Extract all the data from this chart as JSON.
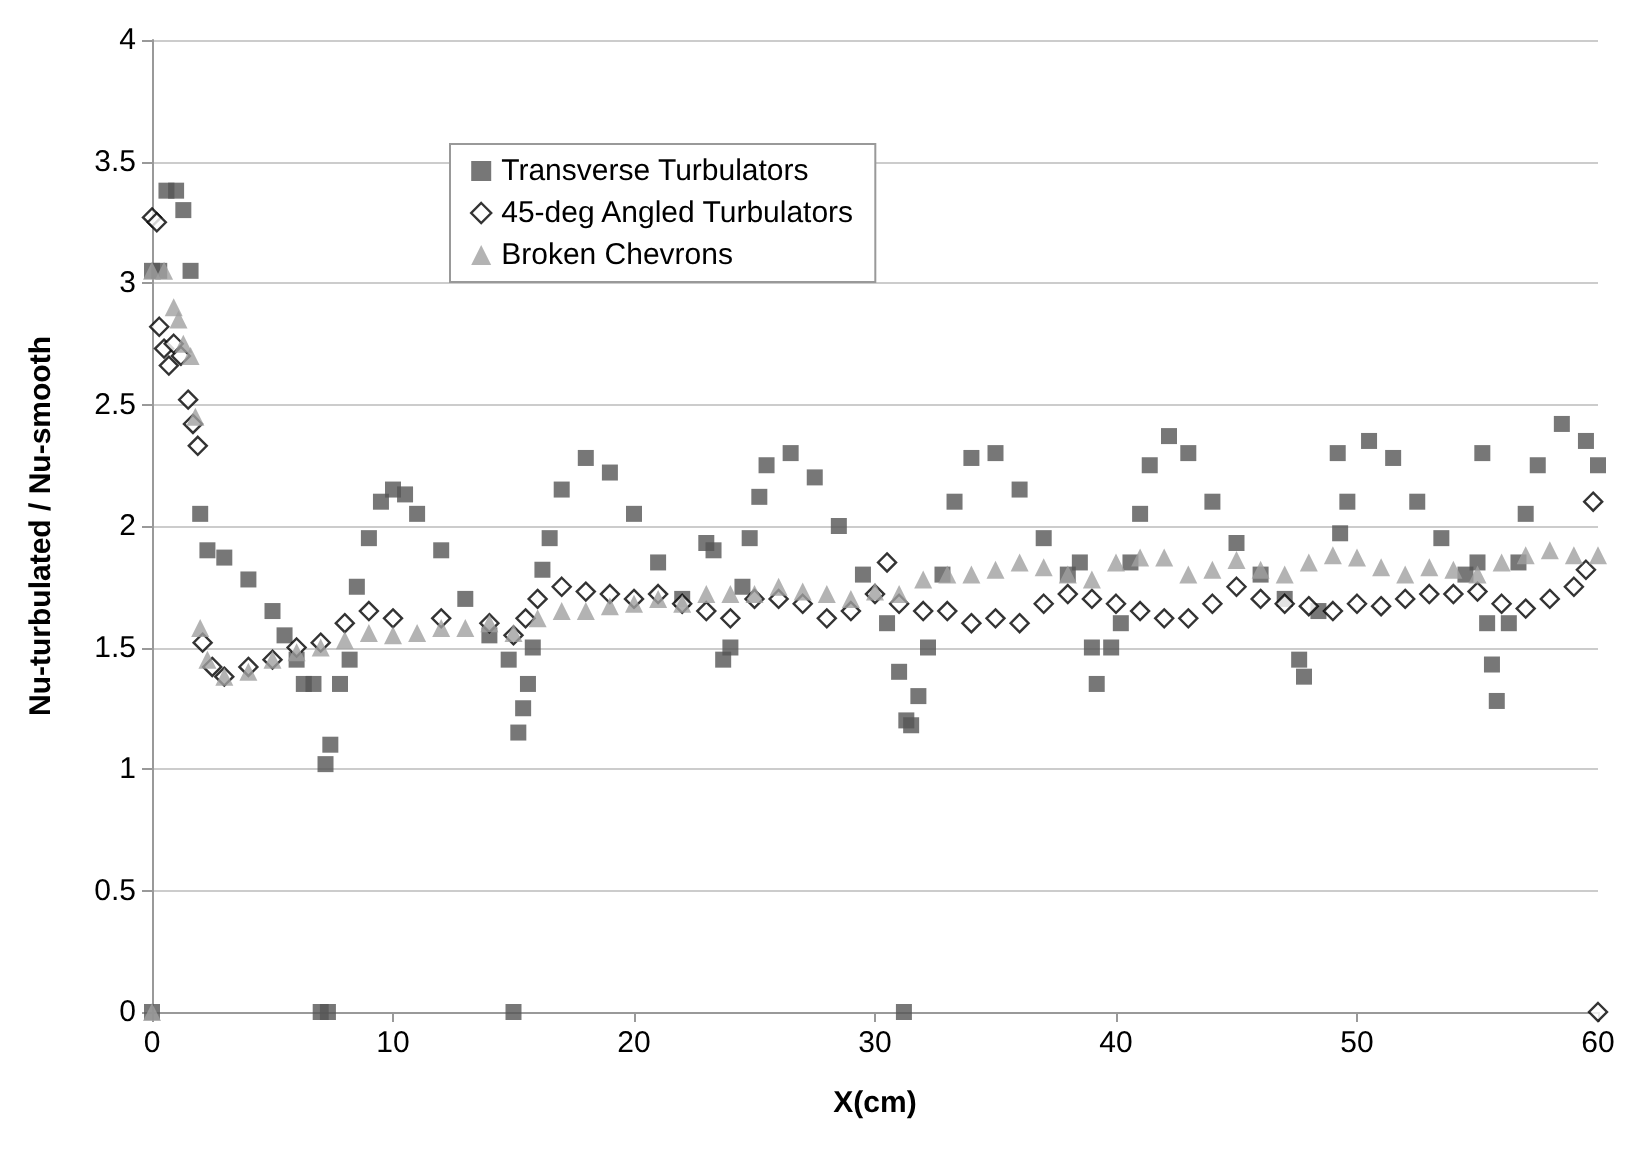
{
  "chart_data": {
    "type": "scatter",
    "xlabel": "X(cm)",
    "ylabel": "Nu-turbulated / Nu-smooth",
    "xlim": [
      0,
      60
    ],
    "xticks": [
      0,
      10,
      20,
      30,
      40,
      50,
      60
    ],
    "ylim": [
      0,
      4
    ],
    "yticks": [
      0,
      0.5,
      1,
      1.5,
      2,
      2.5,
      3,
      3.5,
      4
    ],
    "grid": "y",
    "legend": "top left",
    "series": [
      {
        "name": "Transverse Turbulators",
        "color": "#555555",
        "marker": "square",
        "x": [
          0,
          0.3,
          0.6,
          1,
          1.3,
          1.6,
          2,
          2.3,
          3,
          4,
          5,
          5.5,
          6,
          6.3,
          6.7,
          7.2,
          7.4,
          7.8,
          8.2,
          8.5,
          9,
          9.5,
          10,
          10.5,
          11,
          12,
          13,
          14,
          14.8,
          15.2,
          15.4,
          15.6,
          15.8,
          16.2,
          16.5,
          17,
          18,
          19,
          20,
          21,
          22,
          23,
          23.3,
          23.7,
          24,
          24.5,
          24.8,
          25.2,
          25.5,
          26.5,
          27.5,
          28.5,
          29.5,
          30.5,
          31,
          31.3,
          31.5,
          31.8,
          32.2,
          32.8,
          33.3,
          34,
          35,
          36,
          37,
          38,
          38.5,
          39,
          39.2,
          39.8,
          40.2,
          40.6,
          41,
          41.4,
          42.2,
          43,
          44,
          45,
          46,
          47,
          47.6,
          47.8,
          48.4,
          49.2,
          49.3,
          49.6,
          50.5,
          51.5,
          52.5,
          53.5,
          54.5,
          55,
          55.2,
          55.4,
          55.6,
          55.8,
          56.3,
          56.7,
          57,
          57.5,
          58.5,
          59.5,
          60,
          0,
          7,
          7.3,
          15,
          31.2
        ],
        "values": [
          3.05,
          3.05,
          3.38,
          3.38,
          3.3,
          3.05,
          2.05,
          1.9,
          1.87,
          1.78,
          1.65,
          1.55,
          1.45,
          1.35,
          1.35,
          1.02,
          1.1,
          1.35,
          1.45,
          1.75,
          1.95,
          2.1,
          2.15,
          2.13,
          2.05,
          1.9,
          1.7,
          1.55,
          1.45,
          1.15,
          1.25,
          1.35,
          1.5,
          1.82,
          1.95,
          2.15,
          2.28,
          2.22,
          2.05,
          1.85,
          1.7,
          1.93,
          1.9,
          1.45,
          1.5,
          1.75,
          1.95,
          2.12,
          2.25,
          2.3,
          2.2,
          2.0,
          1.8,
          1.6,
          1.4,
          1.2,
          1.18,
          1.3,
          1.5,
          1.8,
          2.1,
          2.28,
          2.3,
          2.15,
          1.95,
          1.8,
          1.85,
          1.5,
          1.35,
          1.5,
          1.6,
          1.85,
          2.05,
          2.25,
          2.37,
          2.3,
          2.1,
          1.93,
          1.8,
          1.7,
          1.45,
          1.38,
          1.65,
          2.3,
          1.97,
          2.1,
          2.35,
          2.28,
          2.1,
          1.95,
          1.8,
          1.85,
          2.3,
          1.6,
          1.43,
          1.28,
          1.6,
          1.85,
          2.05,
          2.25,
          2.42,
          2.35,
          2.25,
          0,
          0,
          0,
          0,
          0
        ]
      },
      {
        "name": "45-deg Angled Turbulators",
        "color": "#000000",
        "marker": "diamond",
        "x": [
          0,
          0.2,
          0.3,
          0.5,
          0.7,
          0.9,
          1.2,
          1.5,
          1.7,
          1.9,
          2.1,
          2.5,
          3,
          4,
          5,
          6,
          7,
          8,
          9,
          10,
          12,
          14,
          15,
          15.5,
          16,
          17,
          18,
          19,
          20,
          21,
          22,
          23,
          24,
          25,
          26,
          27,
          28,
          29,
          30,
          30.5,
          31,
          32,
          33,
          34,
          35,
          36,
          37,
          38,
          39,
          40,
          41,
          42,
          43,
          44,
          45,
          46,
          47,
          48,
          49,
          50,
          51,
          52,
          53,
          54,
          55,
          56,
          57,
          58,
          59,
          59.5,
          59.8,
          60
        ],
        "values": [
          3.27,
          3.25,
          2.82,
          2.73,
          2.66,
          2.75,
          2.7,
          2.52,
          2.42,
          2.33,
          1.52,
          1.42,
          1.38,
          1.42,
          1.45,
          1.5,
          1.52,
          1.6,
          1.65,
          1.62,
          1.62,
          1.6,
          1.55,
          1.62,
          1.7,
          1.75,
          1.73,
          1.72,
          1.7,
          1.72,
          1.68,
          1.65,
          1.62,
          1.7,
          1.7,
          1.68,
          1.62,
          1.65,
          1.72,
          1.85,
          1.68,
          1.65,
          1.65,
          1.6,
          1.62,
          1.6,
          1.68,
          1.72,
          1.7,
          1.68,
          1.65,
          1.62,
          1.62,
          1.68,
          1.75,
          1.7,
          1.68,
          1.67,
          1.65,
          1.68,
          1.67,
          1.7,
          1.72,
          1.72,
          1.73,
          1.68,
          1.66,
          1.7,
          1.75,
          1.82,
          2.1,
          0
        ]
      },
      {
        "name": "Broken Chevrons",
        "color": "#a0a0a0",
        "marker": "triangle",
        "x": [
          0,
          0.5,
          0.9,
          1.1,
          1.3,
          1.6,
          1.8,
          2,
          2.3,
          3,
          4,
          5,
          6,
          7,
          8,
          9,
          10,
          11,
          12,
          13,
          14,
          15,
          16,
          17,
          18,
          19,
          20,
          21,
          22,
          23,
          24,
          25,
          26,
          27,
          28,
          29,
          30,
          31,
          32,
          33,
          34,
          35,
          36,
          37,
          38,
          39,
          40,
          41,
          42,
          43,
          44,
          45,
          46,
          47,
          48,
          49,
          50,
          51,
          52,
          53,
          54,
          55,
          56,
          57,
          58,
          59,
          60,
          0
        ],
        "values": [
          3.05,
          3.05,
          2.9,
          2.85,
          2.75,
          2.7,
          2.45,
          1.58,
          1.45,
          1.38,
          1.4,
          1.45,
          1.48,
          1.5,
          1.53,
          1.56,
          1.55,
          1.56,
          1.58,
          1.58,
          1.6,
          1.56,
          1.62,
          1.65,
          1.65,
          1.67,
          1.68,
          1.7,
          1.68,
          1.72,
          1.72,
          1.72,
          1.75,
          1.73,
          1.72,
          1.7,
          1.73,
          1.72,
          1.78,
          1.8,
          1.8,
          1.82,
          1.85,
          1.83,
          1.8,
          1.78,
          1.85,
          1.87,
          1.87,
          1.8,
          1.82,
          1.86,
          1.82,
          1.8,
          1.85,
          1.88,
          1.87,
          1.83,
          1.8,
          1.83,
          1.82,
          1.8,
          1.85,
          1.88,
          1.9,
          1.88,
          1.88,
          0
        ]
      }
    ]
  }
}
